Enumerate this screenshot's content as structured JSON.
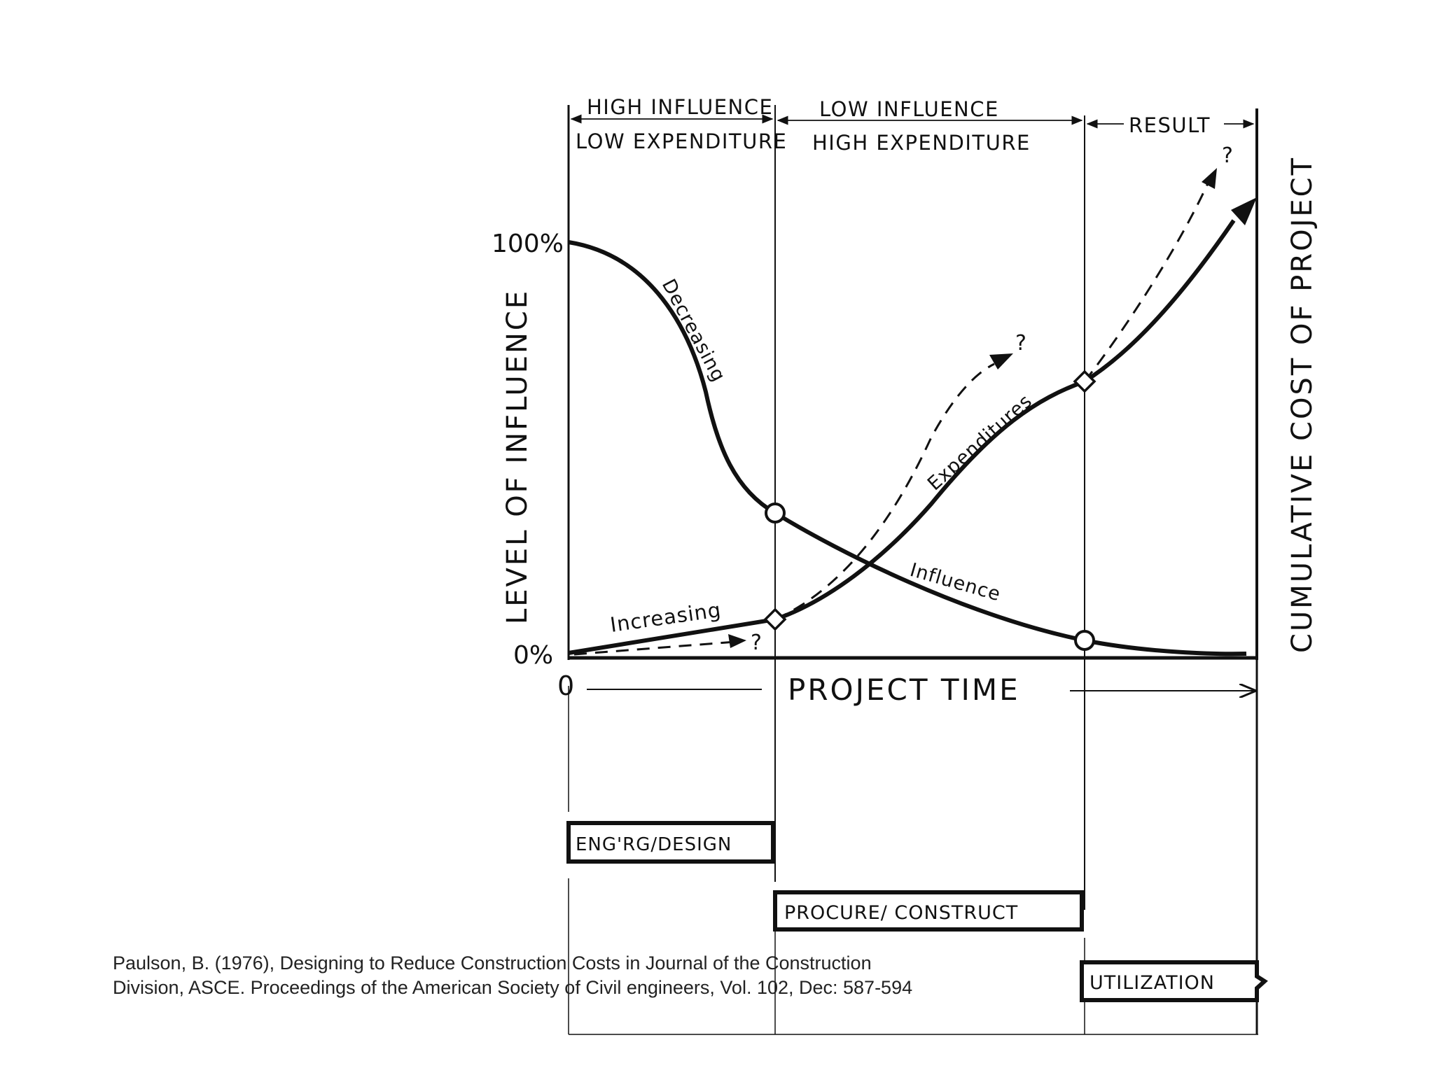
{
  "diagram": {
    "phase_headers": {
      "phase1_line1": "HIGH INFLUENCE",
      "phase1_line2": "LOW EXPENDITURE",
      "phase2_line1": "LOW INFLUENCE",
      "phase2_line2": "HIGH EXPENDITURE",
      "phase3": "RESULT"
    },
    "left_axis_label": "LEVEL OF INFLUENCE",
    "right_axis_label": "CUMULATIVE COST OF PROJECT",
    "tick_top": "100%",
    "tick_bottom": "0%",
    "origin": "0",
    "x_axis_label": "PROJECT TIME",
    "curve_labels": {
      "decreasing": "Decreasing",
      "influence": "Influence",
      "increasing": "Increasing",
      "expenditures": "Expenditures"
    },
    "question_mark": "?",
    "stages": {
      "design": "ENG'RG/DESIGN",
      "construct": "PROCURE/ CONSTRUCT",
      "utilization": "UTILIZATION"
    },
    "line_color": "#111111"
  },
  "citation": {
    "line1": "Paulson, B. (1976), Designing to Reduce Construction Costs in Journal of the Construction",
    "line2": "Division, ASCE. Proceedings of the American Society of Civil engineers, Vol. 102, Dec: 587-594"
  }
}
